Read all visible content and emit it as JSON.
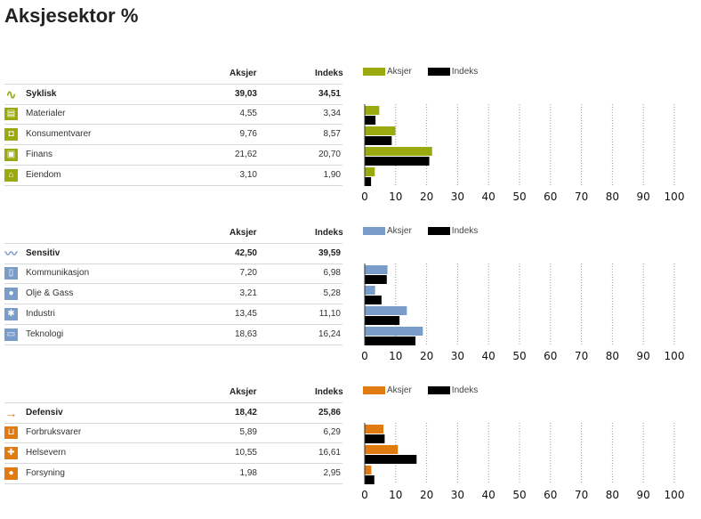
{
  "page_title": "Aksjesektor %",
  "col_aksjer": "Aksjer",
  "col_indeks": "Indeks",
  "chart_data": [
    {
      "type": "bar",
      "group": "Syklisk",
      "color": "#9aaa0e",
      "total": {
        "aksjer": "39,03",
        "indeks": "34,51"
      },
      "categories": [
        "Materialer",
        "Konsumentvarer",
        "Finans",
        "Eiendom"
      ],
      "icons": [
        "bricks-icon",
        "car-icon",
        "money-icon",
        "house-icon"
      ],
      "aksjer_labels": [
        "4,55",
        "9,76",
        "21,62",
        "3,10"
      ],
      "indeks_labels": [
        "3,34",
        "8,57",
        "20,70",
        "1,90"
      ],
      "series": [
        {
          "name": "Aksjer",
          "values": [
            4.55,
            9.76,
            21.62,
            3.1
          ]
        },
        {
          "name": "Indeks",
          "values": [
            3.34,
            8.57,
            20.7,
            1.9
          ]
        }
      ],
      "xlim": [
        0,
        100
      ],
      "xticks": [
        0,
        10,
        20,
        30,
        40,
        50,
        60,
        70,
        80,
        90,
        100
      ],
      "grid": true
    },
    {
      "type": "bar",
      "group": "Sensitiv",
      "color": "#7a9cc8",
      "total": {
        "aksjer": "42,50",
        "indeks": "39,59"
      },
      "categories": [
        "Kommunikasjon",
        "Olje & Gass",
        "Industri",
        "Teknologi"
      ],
      "icons": [
        "phone-icon",
        "drop-icon",
        "gear-icon",
        "computer-icon"
      ],
      "aksjer_labels": [
        "7,20",
        "3,21",
        "13,45",
        "18,63"
      ],
      "indeks_labels": [
        "6,98",
        "5,28",
        "11,10",
        "16,24"
      ],
      "series": [
        {
          "name": "Aksjer",
          "values": [
            7.2,
            3.21,
            13.45,
            18.63
          ]
        },
        {
          "name": "Indeks",
          "values": [
            6.98,
            5.28,
            11.1,
            16.24
          ]
        }
      ],
      "xlim": [
        0,
        100
      ],
      "xticks": [
        0,
        10,
        20,
        30,
        40,
        50,
        60,
        70,
        80,
        90,
        100
      ],
      "grid": true
    },
    {
      "type": "bar",
      "group": "Defensiv",
      "color": "#e07b12",
      "total": {
        "aksjer": "18,42",
        "indeks": "25,86"
      },
      "categories": [
        "Forbruksvarer",
        "Helsevern",
        "Forsyning"
      ],
      "icons": [
        "cart-icon",
        "cross-icon",
        "bulb-icon"
      ],
      "aksjer_labels": [
        "5,89",
        "10,55",
        "1,98"
      ],
      "indeks_labels": [
        "6,29",
        "16,61",
        "2,95"
      ],
      "series": [
        {
          "name": "Aksjer",
          "values": [
            5.89,
            10.55,
            1.98
          ]
        },
        {
          "name": "Indeks",
          "values": [
            6.29,
            16.61,
            2.95
          ]
        }
      ],
      "xlim": [
        0,
        100
      ],
      "xticks": [
        0,
        10,
        20,
        30,
        40,
        50,
        60,
        70,
        80,
        90,
        100
      ],
      "grid": true
    }
  ]
}
